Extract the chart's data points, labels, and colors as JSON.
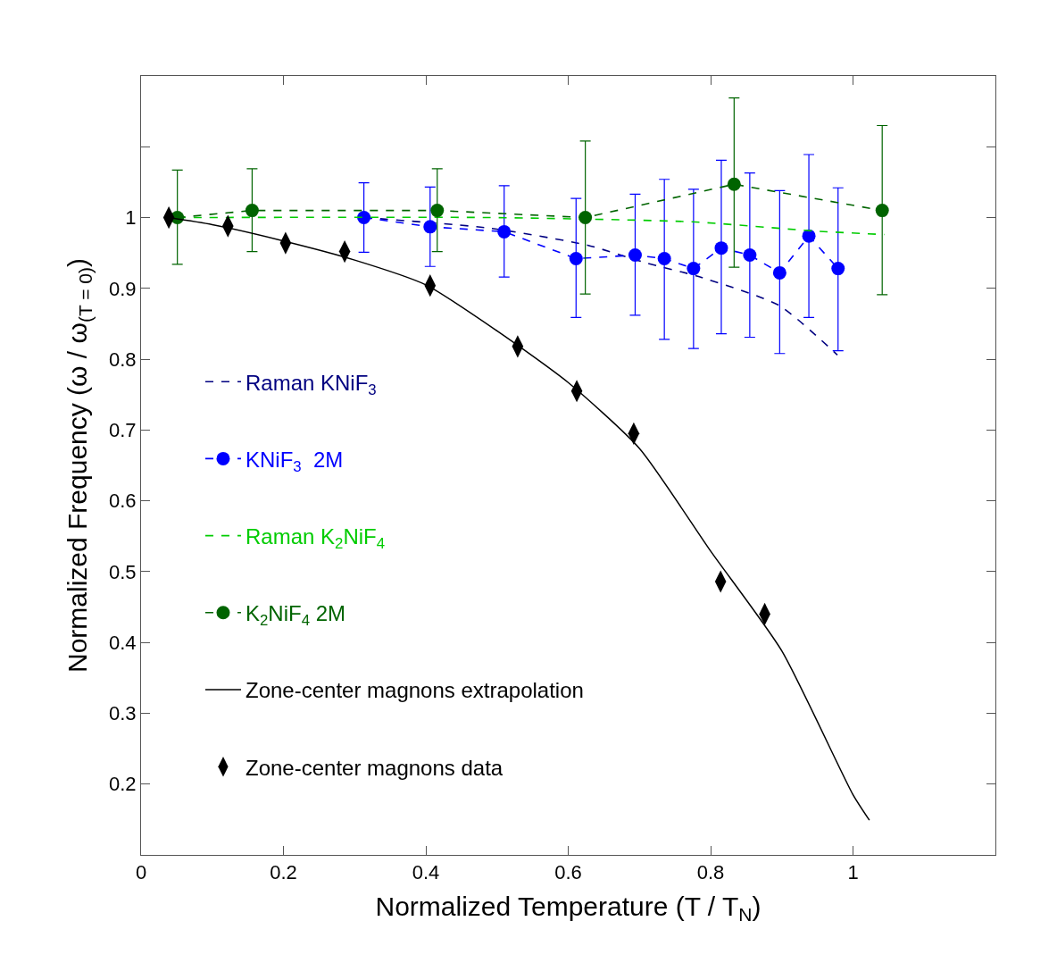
{
  "chart_data": {
    "type": "scatter",
    "xlabel": "Normalized Temperature (T / T$_{N}$)",
    "ylabel": "Normalized Frequency (ω / ω$_{(T = 0)}$)",
    "xlim": [
      0,
      1.2
    ],
    "xticks": [
      0,
      0.2,
      0.4,
      0.6,
      0.8,
      1
    ],
    "ylim": [
      0.1,
      1.2
    ],
    "yticks": [
      0.2,
      0.3,
      0.4,
      0.5,
      0.6,
      0.7,
      0.8,
      0.9,
      1,
      {
        "value": 1.1,
        "label": null
      }
    ],
    "grid": false,
    "legend": "left",
    "series": [
      {
        "name": "Raman KNiF$_{3}$",
        "type": "line",
        "color": "#000080",
        "line_style": "dashed",
        "marker": "none",
        "x": [
          0.313,
          0.49,
          0.627,
          0.709,
          0.782,
          0.896,
          0.978
        ],
        "values": [
          1.0,
          0.985,
          0.961,
          0.936,
          0.917,
          0.876,
          0.806
        ]
      },
      {
        "name": "KNiF$_{3}$  2M",
        "type": "line",
        "color": "#0000ff",
        "line_style": "dashed",
        "marker": "circle",
        "x": [
          0.313,
          0.406,
          0.51,
          0.611,
          0.694,
          0.735,
          0.776,
          0.815,
          0.855,
          0.897,
          0.938,
          0.979
        ],
        "values": [
          1.0,
          0.987,
          0.98,
          0.942,
          0.947,
          0.942,
          0.928,
          0.957,
          0.947,
          0.922,
          0.974,
          0.928
        ],
        "errors": [
          [
            0.951,
            1.049
          ],
          [
            0.931,
            1.043
          ],
          [
            0.916,
            1.045
          ],
          [
            0.859,
            1.027
          ],
          [
            0.862,
            1.033
          ],
          [
            0.828,
            1.054
          ],
          [
            0.815,
            1.04
          ],
          [
            0.836,
            1.081
          ],
          [
            0.831,
            1.063
          ],
          [
            0.808,
            1.038
          ],
          [
            0.859,
            1.089
          ],
          [
            0.812,
            1.042
          ]
        ]
      },
      {
        "name": "Raman K$_{2}$NiF$_{4}$",
        "type": "line",
        "color": "#00cc00",
        "line_style": "dashed",
        "marker": "none",
        "x": [
          0.051,
          0.49,
          0.773,
          0.946,
          1.044
        ],
        "values": [
          1.0,
          1.0,
          0.994,
          0.981,
          0.976
        ]
      },
      {
        "name": "K$_{2}$NiF$_{4}$ 2M",
        "type": "line",
        "color": "#006400",
        "line_style": "dashed",
        "marker": "circle",
        "x": [
          0.051,
          0.156,
          0.416,
          0.624,
          0.833,
          1.041
        ],
        "values": [
          1.0,
          1.01,
          1.01,
          1.0,
          1.047,
          1.01
        ],
        "errors": [
          [
            0.934,
            1.067
          ],
          [
            0.952,
            1.069
          ],
          [
            0.952,
            1.069
          ],
          [
            0.892,
            1.108
          ],
          [
            0.93,
            1.169
          ],
          [
            0.891,
            1.13
          ]
        ]
      },
      {
        "name": "Zone-center magnons extrapolation",
        "type": "line",
        "color": "#000000",
        "line_style": "solid",
        "marker": "none",
        "x": [
          0.039,
          0.1,
          0.2,
          0.3,
          0.4,
          0.5,
          0.6,
          0.7,
          0.8,
          0.9,
          1.0,
          1.023
        ],
        "values": [
          1.0,
          0.99,
          0.967,
          0.94,
          0.905,
          0.84,
          0.767,
          0.674,
          0.529,
          0.388,
          0.185,
          0.149
        ]
      },
      {
        "name": "Zone-center magnons data",
        "color": "#000000",
        "marker": "diamond",
        "x": [
          0.039,
          0.122,
          0.203,
          0.286,
          0.406,
          0.529,
          0.612,
          0.692,
          0.814,
          0.876
        ],
        "values": [
          1.0,
          0.988,
          0.964,
          0.952,
          0.904,
          0.818,
          0.755,
          0.695,
          0.486,
          0.44
        ]
      }
    ]
  }
}
